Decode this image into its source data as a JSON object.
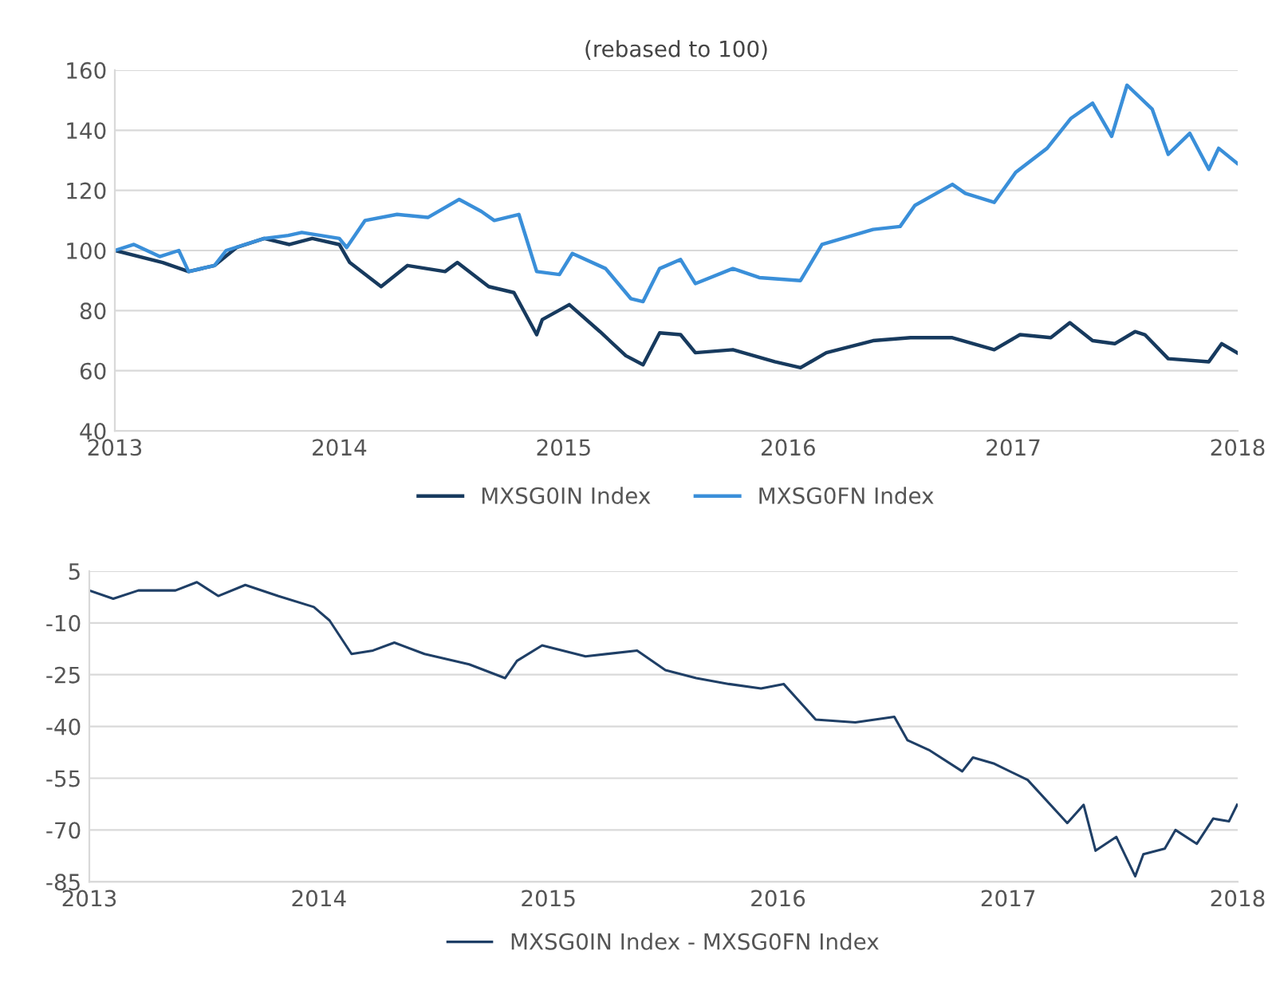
{
  "chart_data": [
    {
      "type": "line",
      "title": "(rebased to 100)",
      "xlim": [
        "2013",
        "2018"
      ],
      "xticks": [
        "2013",
        "2014",
        "2015",
        "2016",
        "2017",
        "2018"
      ],
      "ylim": [
        40,
        160
      ],
      "yticks": [
        40,
        60,
        80,
        100,
        120,
        140,
        160
      ],
      "grid": "y",
      "legend": "bottom",
      "line_style": "solid",
      "series": [
        {
          "name": "MXSG0IN Index",
          "color": "#173a5e",
          "x": [
            "2013-01-01",
            "2013-03-20",
            "2013-05-01",
            "2013-06-12",
            "2013-07-18",
            "2013-09-01",
            "2013-10-12",
            "2013-11-18",
            "2014-01-01",
            "2014-01-18",
            "2014-03-10",
            "2014-04-22",
            "2014-06-22",
            "2014-07-12",
            "2014-09-01",
            "2014-10-12",
            "2014-11-18",
            "2014-11-27",
            "2015-01-10",
            "2015-03-01",
            "2015-04-12",
            "2015-05-10",
            "2015-06-06",
            "2015-07-10",
            "2015-08-03",
            "2015-10-03",
            "2015-12-10",
            "2016-01-21",
            "2016-03-03",
            "2016-05-18",
            "2016-07-18",
            "2016-09-24",
            "2016-12-01",
            "2017-01-12",
            "2017-03-03",
            "2017-04-03",
            "2017-05-10",
            "2017-06-15",
            "2017-07-18",
            "2017-08-03",
            "2017-09-10",
            "2017-11-15",
            "2017-12-06",
            "2017-12-31"
          ],
          "values": [
            100,
            96,
            93,
            95,
            101,
            104,
            102,
            104,
            102,
            96,
            88,
            95,
            93,
            96,
            88,
            86,
            72,
            77,
            82,
            73,
            65,
            62,
            72.6,
            72,
            66,
            67,
            63,
            61,
            66,
            70,
            71,
            71,
            67,
            72,
            71,
            76,
            70,
            69,
            73,
            72,
            64,
            63,
            69,
            66
          ]
        },
        {
          "name": "MXSG0FN Index",
          "color": "#3a8fd9",
          "x": [
            "2013-01-01",
            "2013-02-01",
            "2013-03-15",
            "2013-04-15",
            "2013-05-01",
            "2013-06-12",
            "2013-07-01",
            "2013-09-01",
            "2013-10-10",
            "2013-11-01",
            "2014-01-01",
            "2014-01-13",
            "2014-02-12",
            "2014-04-05",
            "2014-05-25",
            "2014-07-15",
            "2014-08-20",
            "2014-09-10",
            "2014-10-20",
            "2014-11-18",
            "2014-12-25",
            "2015-01-15",
            "2015-03-10",
            "2015-04-20",
            "2015-05-10",
            "2015-06-06",
            "2015-07-10",
            "2015-08-03",
            "2015-10-03",
            "2015-11-15",
            "2016-01-21",
            "2016-02-25",
            "2016-05-18",
            "2016-07-01",
            "2016-07-25",
            "2016-09-24",
            "2016-10-15",
            "2016-12-01",
            "2017-01-05",
            "2017-02-25",
            "2017-04-05",
            "2017-05-10",
            "2017-06-10",
            "2017-07-05",
            "2017-08-15",
            "2017-09-10",
            "2017-10-15",
            "2017-11-15",
            "2017-12-01",
            "2017-12-31"
          ],
          "values": [
            100,
            102,
            98,
            100,
            93,
            95,
            100,
            104,
            105,
            106,
            104,
            101,
            110,
            112,
            111,
            117,
            113,
            110,
            112,
            93,
            92,
            99,
            94,
            84,
            83,
            94,
            97,
            89,
            94,
            91,
            90,
            102,
            107,
            108,
            115,
            122,
            119,
            116,
            126,
            134,
            144,
            149,
            138,
            155,
            147,
            132,
            139,
            127,
            134,
            129
          ]
        }
      ]
    },
    {
      "type": "line",
      "xlim": [
        "2013",
        "2018"
      ],
      "xticks": [
        "2013",
        "2014",
        "2015",
        "2016",
        "2017",
        "2018"
      ],
      "ylim": [
        -85,
        5
      ],
      "yticks": [
        -85,
        -70,
        -55,
        -40,
        -25,
        -10,
        5
      ],
      "grid": "y",
      "legend": "bottom",
      "line_style": "solid",
      "series": [
        {
          "name": "MXSG0IN Index - MXSG0FN Index",
          "color": "#1f3f66",
          "x": [
            "2013-01-01",
            "2013-02-08",
            "2013-03-20",
            "2013-05-18",
            "2013-06-21",
            "2013-07-25",
            "2013-09-06",
            "2013-10-28",
            "2013-12-24",
            "2014-01-18",
            "2014-02-22",
            "2014-03-28",
            "2014-05-01",
            "2014-06-18",
            "2014-08-28",
            "2014-10-24",
            "2014-11-12",
            "2014-12-22",
            "2015-03-01",
            "2015-05-22",
            "2015-07-06",
            "2015-08-24",
            "2015-10-15",
            "2015-12-05",
            "2016-01-10",
            "2016-03-01",
            "2016-05-03",
            "2016-07-04",
            "2016-07-25",
            "2016-08-28",
            "2016-10-20",
            "2016-11-06",
            "2016-12-10",
            "2017-02-01",
            "2017-04-05",
            "2017-05-01",
            "2017-05-20",
            "2017-06-22",
            "2017-07-22",
            "2017-08-04",
            "2017-09-07",
            "2017-09-24",
            "2017-10-28",
            "2017-11-23",
            "2017-12-18",
            "2017-12-31"
          ],
          "values": [
            -0.6,
            -3,
            -0.6,
            -0.6,
            1.8,
            -2.2,
            1,
            -2.2,
            -5.4,
            -9.3,
            -19,
            -18,
            -15.7,
            -19,
            -22,
            -26,
            -21,
            -16.5,
            -19.7,
            -18,
            -23.7,
            -26,
            -27.7,
            -29,
            -27.7,
            -38,
            -38.8,
            -37.2,
            -44,
            -46.8,
            -53,
            -49,
            -50.8,
            -55.5,
            -68,
            -62.7,
            -76,
            -72,
            -83.4,
            -77,
            -75.4,
            -70,
            -74,
            -66.7,
            -67.5,
            -62.7
          ]
        }
      ]
    }
  ]
}
